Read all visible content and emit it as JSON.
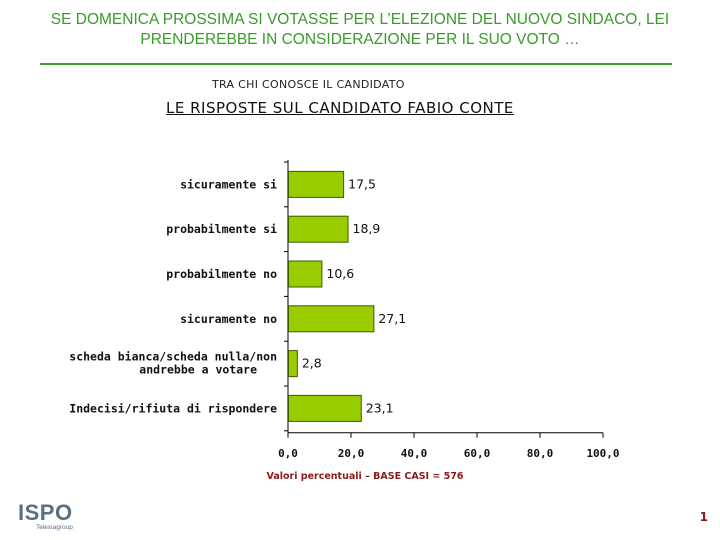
{
  "header": {
    "headline_line1": "SE DOMENICA PROSSIMA SI VOTASSE PER L’ELEZIONE DEL NUOVO SINDACO, LEI",
    "headline_line2": "PRENDEREBBE IN CONSIDERAZIONE PER IL SUO VOTO …",
    "subhead": "TRA CHI CONOSCE IL CANDIDATO"
  },
  "chart_data": {
    "type": "bar",
    "orientation": "horizontal",
    "title": "LE RISPOSTE SUL CANDIDATO FABIO CONTE",
    "categories": [
      "sicuramente si",
      "probabilmente si",
      "probabilmente no",
      "sicuramente no",
      "scheda bianca/scheda nulla/non andrebbe a votare",
      "Indecisi/rifiuta di rispondere"
    ],
    "values": [
      17.5,
      18.9,
      10.6,
      27.1,
      2.8,
      23.1
    ],
    "value_labels": [
      "17,5",
      "18,9",
      "10,6",
      "27,1",
      "2,8",
      "23,1"
    ],
    "xlim": [
      0,
      100
    ],
    "x_ticks": [
      0,
      20,
      40,
      60,
      80,
      100
    ],
    "x_tick_labels": [
      "0,0",
      "20,0",
      "40,0",
      "60,0",
      "80,0",
      "100,0"
    ],
    "grid": false,
    "bar_color": "#9acd00",
    "bar_edge_color": "#3d5a00"
  },
  "footer": {
    "base_note": "Valori percentuali – BASE CASI = 576",
    "logo_text": "ISPO",
    "logo_subtext": "Telexiagroup",
    "page_number": "1"
  }
}
